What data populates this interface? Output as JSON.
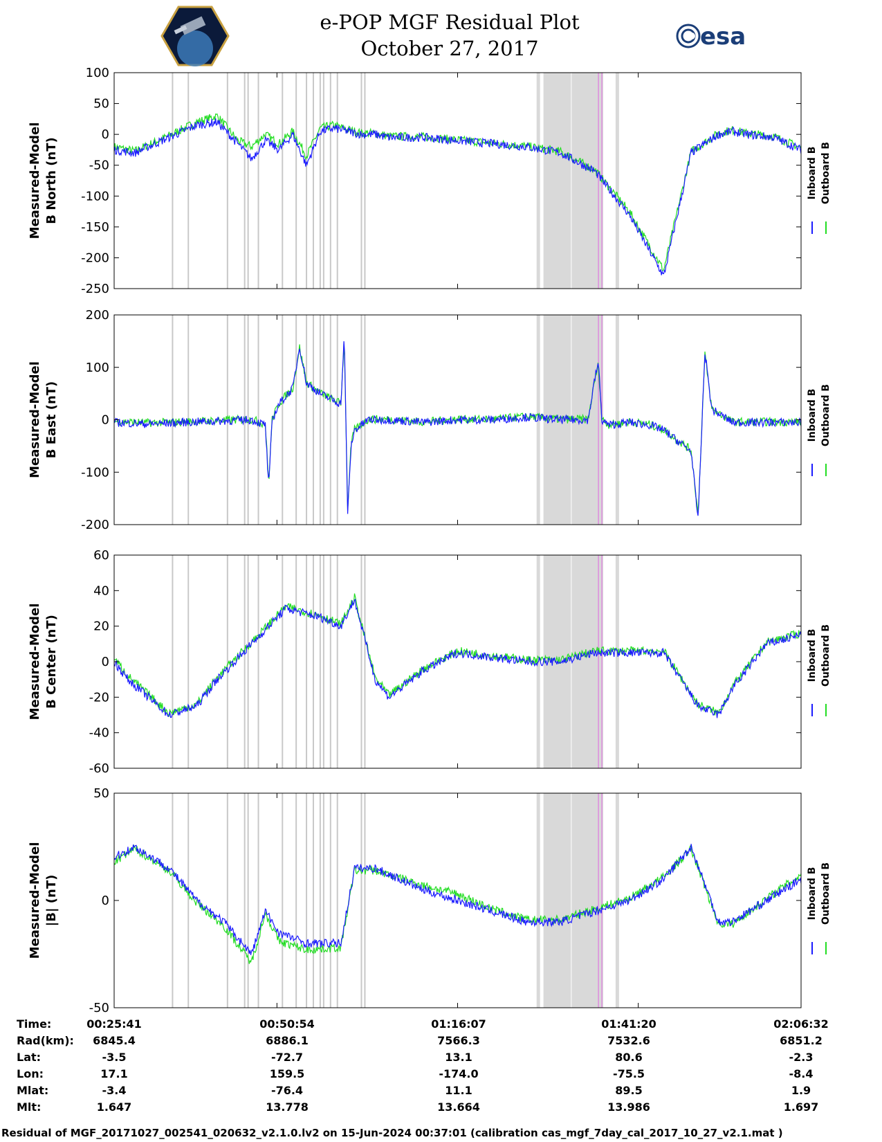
{
  "title": {
    "line1": "e-POP MGF Residual Plot",
    "line2": "October 27, 2017"
  },
  "logos": {
    "left": "cassiope-mission-logo",
    "right_text": "esa"
  },
  "colors": {
    "inboard": "#1a1aff",
    "outboard": "#22dd22",
    "shade": "#d9d9d9",
    "shade_line": "#c8c8c8",
    "magenta": "#e066e0"
  },
  "legend": {
    "inboard": "Inboard B",
    "outboard": "Outboard B"
  },
  "chart_data": [
    {
      "type": "line",
      "ylabel": [
        "Measured-Model",
        "B North (nT)"
      ],
      "ylim": [
        -250,
        100
      ],
      "yticks": [
        100,
        50,
        0,
        -50,
        -100,
        -150,
        -200,
        -250
      ],
      "x": [
        0,
        0.03,
        0.08,
        0.12,
        0.15,
        0.18,
        0.2,
        0.22,
        0.24,
        0.26,
        0.28,
        0.3,
        0.32,
        0.34,
        0.36,
        0.38,
        0.4,
        0.45,
        0.5,
        0.55,
        0.6,
        0.65,
        0.7,
        0.75,
        0.8,
        0.84,
        0.88,
        0.9,
        0.92,
        0.96,
        1.0
      ],
      "series": [
        {
          "name": "Inboard B",
          "values": [
            -25,
            -30,
            -5,
            15,
            20,
            -15,
            -40,
            -10,
            -25,
            0,
            -50,
            5,
            10,
            5,
            0,
            0,
            -5,
            -5,
            -10,
            -15,
            -20,
            -30,
            -60,
            -130,
            -230,
            -30,
            0,
            5,
            0,
            -5,
            -25
          ]
        },
        {
          "name": "Outboard B",
          "values": [
            -20,
            -27,
            -2,
            20,
            30,
            -10,
            -20,
            0,
            -15,
            5,
            -35,
            10,
            15,
            8,
            2,
            2,
            -3,
            -4,
            -9,
            -14,
            -19,
            -28,
            -58,
            -125,
            -220,
            -28,
            2,
            7,
            2,
            -3,
            -22
          ]
        }
      ]
    },
    {
      "type": "line",
      "ylabel": [
        "Measured-Model",
        "B East (nT)"
      ],
      "ylim": [
        -200,
        200
      ],
      "yticks": [
        200,
        100,
        0,
        -100,
        -200
      ],
      "x": [
        0,
        0.05,
        0.1,
        0.2,
        0.22,
        0.225,
        0.23,
        0.24,
        0.26,
        0.27,
        0.28,
        0.3,
        0.33,
        0.335,
        0.34,
        0.345,
        0.35,
        0.37,
        0.4,
        0.45,
        0.5,
        0.55,
        0.6,
        0.65,
        0.69,
        0.7,
        0.705,
        0.71,
        0.72,
        0.75,
        0.78,
        0.8,
        0.84,
        0.85,
        0.86,
        0.87,
        0.9,
        1.0
      ],
      "series": [
        {
          "name": "Inboard B",
          "values": [
            -5,
            -8,
            -5,
            0,
            -10,
            -130,
            0,
            30,
            60,
            140,
            70,
            50,
            30,
            160,
            -180,
            -50,
            -20,
            0,
            0,
            -5,
            0,
            0,
            5,
            0,
            0,
            80,
            110,
            0,
            -10,
            -5,
            -10,
            -20,
            -60,
            -190,
            130,
            20,
            -5,
            -5
          ]
        },
        {
          "name": "Outboard B",
          "values": [
            -3,
            -6,
            -4,
            1,
            -8,
            -120,
            1,
            31,
            61,
            138,
            71,
            51,
            31,
            155,
            -170,
            -48,
            -19,
            1,
            1,
            -4,
            1,
            1,
            6,
            1,
            1,
            78,
            105,
            1,
            -9,
            -4,
            -9,
            -19,
            -58,
            -180,
            125,
            21,
            -4,
            -4
          ]
        }
      ]
    },
    {
      "type": "line",
      "ylabel": [
        "Measured-Model",
        "B Center (nT)"
      ],
      "ylim": [
        -60,
        60
      ],
      "yticks": [
        60,
        40,
        20,
        0,
        -20,
        -40,
        -60
      ],
      "x": [
        0,
        0.02,
        0.08,
        0.12,
        0.15,
        0.2,
        0.25,
        0.3,
        0.33,
        0.35,
        0.38,
        0.4,
        0.45,
        0.5,
        0.6,
        0.65,
        0.7,
        0.75,
        0.8,
        0.85,
        0.88,
        0.9,
        0.95,
        1.0
      ],
      "series": [
        {
          "name": "Inboard B",
          "values": [
            0,
            -10,
            -30,
            -25,
            -10,
            10,
            30,
            25,
            20,
            35,
            -10,
            -20,
            -5,
            5,
            0,
            0,
            5,
            5,
            5,
            -25,
            -30,
            -15,
            10,
            15
          ]
        },
        {
          "name": "Outboard B",
          "values": [
            2,
            -8,
            -29,
            -24,
            -9,
            11,
            31,
            26,
            21,
            36,
            -9,
            -19,
            -4,
            6,
            1,
            1,
            6,
            6,
            6,
            -24,
            -29,
            -14,
            11,
            16
          ]
        }
      ]
    },
    {
      "type": "line",
      "ylabel": [
        "Measured-Model",
        "|B| (nT)"
      ],
      "ylim": [
        -50,
        50
      ],
      "yticks": [
        50,
        0,
        -50
      ],
      "x": [
        0,
        0.03,
        0.08,
        0.12,
        0.16,
        0.2,
        0.22,
        0.24,
        0.28,
        0.33,
        0.35,
        0.38,
        0.45,
        0.5,
        0.55,
        0.6,
        0.65,
        0.7,
        0.75,
        0.8,
        0.84,
        0.88,
        0.9,
        0.95,
        1.0
      ],
      "series": [
        {
          "name": "Inboard B",
          "values": [
            20,
            25,
            15,
            0,
            -10,
            -25,
            -5,
            -15,
            -20,
            -20,
            15,
            15,
            5,
            0,
            -5,
            -10,
            -10,
            -5,
            0,
            10,
            25,
            -10,
            -10,
            0,
            10
          ]
        },
        {
          "name": "Outboard B",
          "values": [
            18,
            24,
            14,
            -1,
            -12,
            -29,
            -6,
            -19,
            -23,
            -22,
            14,
            14,
            7,
            3,
            -4,
            -9,
            -9,
            -4,
            1,
            11,
            24,
            -11,
            -11,
            1,
            12
          ]
        }
      ]
    }
  ],
  "shaded_regions": [
    [
      0.615,
      0.62
    ],
    [
      0.625,
      0.665
    ],
    [
      0.666,
      0.712
    ],
    [
      0.73,
      0.735
    ]
  ],
  "shade_lines": [
    0.085,
    0.108,
    0.165,
    0.19,
    0.195,
    0.21,
    0.245,
    0.265,
    0.28,
    0.29,
    0.3,
    0.305,
    0.315,
    0.325,
    0.36,
    0.365
  ],
  "magenta_lines": [
    0.705,
    0.71
  ],
  "table": {
    "row_labels": [
      "Time:",
      "Rad(km):",
      "Lat:",
      "Lon:",
      "Mlat:",
      "Mlt:"
    ],
    "columns": [
      [
        "00:25:41",
        "6845.4",
        "-3.5",
        "17.1",
        "-3.4",
        "1.647"
      ],
      [
        "00:50:54",
        "6886.1",
        "-72.7",
        "159.5",
        "-76.4",
        "13.778"
      ],
      [
        "01:16:07",
        "7566.3",
        "13.1",
        "-174.0",
        "11.1",
        "13.664"
      ],
      [
        "01:41:20",
        "7532.6",
        "80.6",
        "-75.5",
        "89.5",
        "13.986"
      ],
      [
        "02:06:32",
        "6851.2",
        "-2.3",
        "-8.4",
        "1.9",
        "1.697"
      ]
    ]
  },
  "footer": "Residual of MGF_20171027_002541_020632_v2.1.0.lv2 on 15-Jun-2024 00:37:01 (calibration cas_mgf_7day_cal_2017_10_27_v2.1.mat )"
}
